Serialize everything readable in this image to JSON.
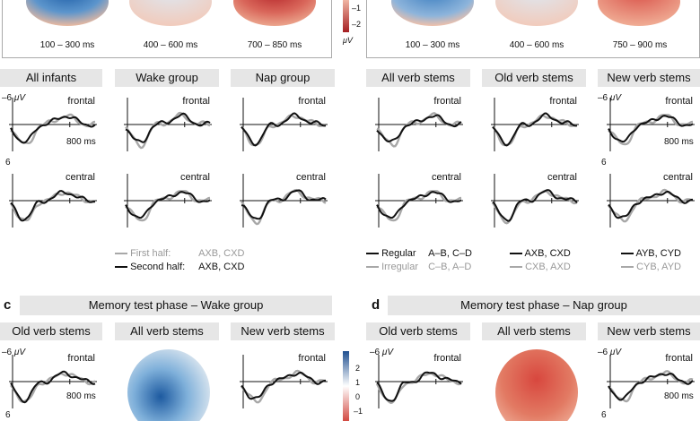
{
  "colors": {
    "black": "#111111",
    "gray": "#a8a8a8",
    "blue": "#2a6fb0",
    "red": "#c7312f",
    "header_bg": "#e6e6e6"
  },
  "top_left": {
    "time_windows": [
      "100 – 300 ms",
      "400 – 600 ms",
      "700 – 850 ms"
    ]
  },
  "top_right": {
    "time_windows": [
      "100 – 300 ms",
      "400 – 600 ms",
      "750 – 900 ms"
    ]
  },
  "colorbar_top": {
    "ticks": [
      "–1",
      "–2"
    ],
    "unit": "μV"
  },
  "groups_left": [
    "All infants",
    "Wake group",
    "Nap group"
  ],
  "groups_right": [
    "All verb stems",
    "Old verb stems",
    "New verb stems"
  ],
  "axis": {
    "y_top": "–6",
    "y_bottom": "6",
    "unit": "μV",
    "time_label": "800 ms"
  },
  "regions": {
    "frontal": "frontal",
    "central": "central"
  },
  "legend_left": {
    "first_label": "First half:",
    "first_value": "AXB, CXD",
    "second_label": "Second half:",
    "second_value": "AXB, CXD"
  },
  "legend_right": [
    {
      "black_label": "Regular",
      "black_value": "A–B, C–D",
      "gray_label": "Irregular",
      "gray_value": "C–B, A–D"
    },
    {
      "black_value": "AXB, CXD",
      "gray_value": "CXB, AXD"
    },
    {
      "black_value": "AYB, CYD",
      "gray_value": "CYB, AYD"
    }
  ],
  "panel_c": {
    "letter": "c",
    "title": "Memory test phase – Wake group",
    "cols": [
      "Old verb stems",
      "All verb stems",
      "New verb stems"
    ]
  },
  "panel_d": {
    "letter": "d",
    "title": "Memory test phase – Nap group",
    "cols": [
      "Old verb stems",
      "All verb stems",
      "New verb stems"
    ]
  },
  "colorbar_bottom": {
    "ticks": [
      "2",
      "1",
      "0",
      "–1"
    ],
    "unit": "μV"
  }
}
